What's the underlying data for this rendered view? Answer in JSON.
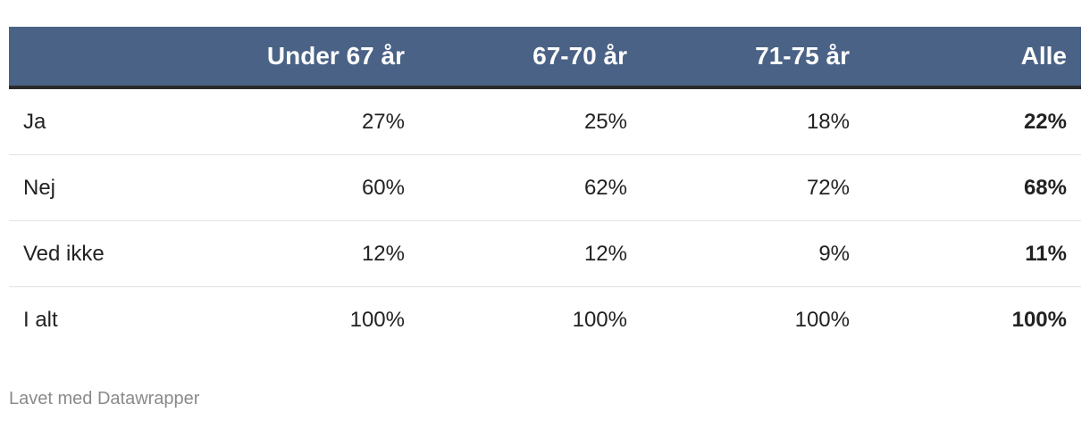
{
  "table": {
    "columns": [
      "Under 67 år",
      "67-70 år",
      "71-75 år",
      "Alle"
    ],
    "rows": [
      {
        "label": "Ja",
        "values": [
          "27%",
          "25%",
          "18%",
          "22%"
        ]
      },
      {
        "label": "Nej",
        "values": [
          "60%",
          "62%",
          "72%",
          "68%"
        ]
      },
      {
        "label": "Ved ikke",
        "values": [
          "12%",
          "12%",
          "9%",
          "11%"
        ]
      },
      {
        "label": "I alt",
        "values": [
          "100%",
          "100%",
          "100%",
          "100%"
        ]
      }
    ]
  },
  "footer": {
    "credit": "Lavet med Datawrapper"
  }
}
